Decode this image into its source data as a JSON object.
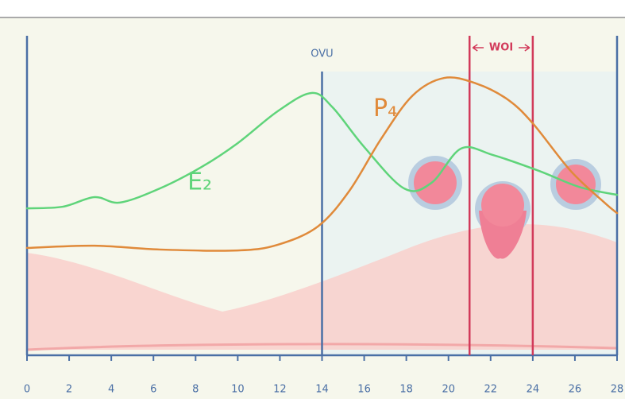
{
  "chart_data": {
    "type": "line",
    "xlim": [
      0,
      28
    ],
    "xticks": [
      0,
      2,
      4,
      6,
      8,
      10,
      12,
      14,
      16,
      18,
      20,
      22,
      24,
      26,
      28
    ],
    "ylim": [
      0,
      100
    ],
    "series": [
      {
        "name": "E₂",
        "color": "#5fd47a",
        "x": [
          0,
          1.7,
          3.2,
          4.4,
          6.3,
          8.3,
          10,
          11.9,
          13.5,
          14.5,
          16,
          17.9,
          19.2,
          20.6,
          22.1,
          24.3,
          26.2,
          28
        ],
        "values": [
          46,
          46.5,
          49.5,
          47.8,
          52.2,
          59,
          66.4,
          76.4,
          82.1,
          77.6,
          65.2,
          52.2,
          54,
          64.7,
          62.7,
          57.7,
          52.7,
          50.2
        ]
      },
      {
        "name": "P₄",
        "color": "#e08a3a",
        "x": [
          0,
          3.2,
          6.3,
          10,
          11.9,
          13.8,
          15.3,
          16.8,
          18.3,
          19.8,
          21.3,
          22.8,
          24,
          25.8,
          27.4,
          28
        ],
        "values": [
          33.6,
          34.3,
          33.1,
          32.8,
          34.6,
          40.3,
          51.5,
          67.7,
          81.3,
          86.8,
          85.1,
          80.1,
          72.6,
          57.7,
          47.8,
          44.5
        ]
      }
    ],
    "ovulation": {
      "label": "OVU",
      "x": 14,
      "color": "#4a6fa5"
    },
    "window": {
      "label": "WOI",
      "x": [
        21,
        24
      ],
      "color": "#d23a5a"
    }
  }
}
